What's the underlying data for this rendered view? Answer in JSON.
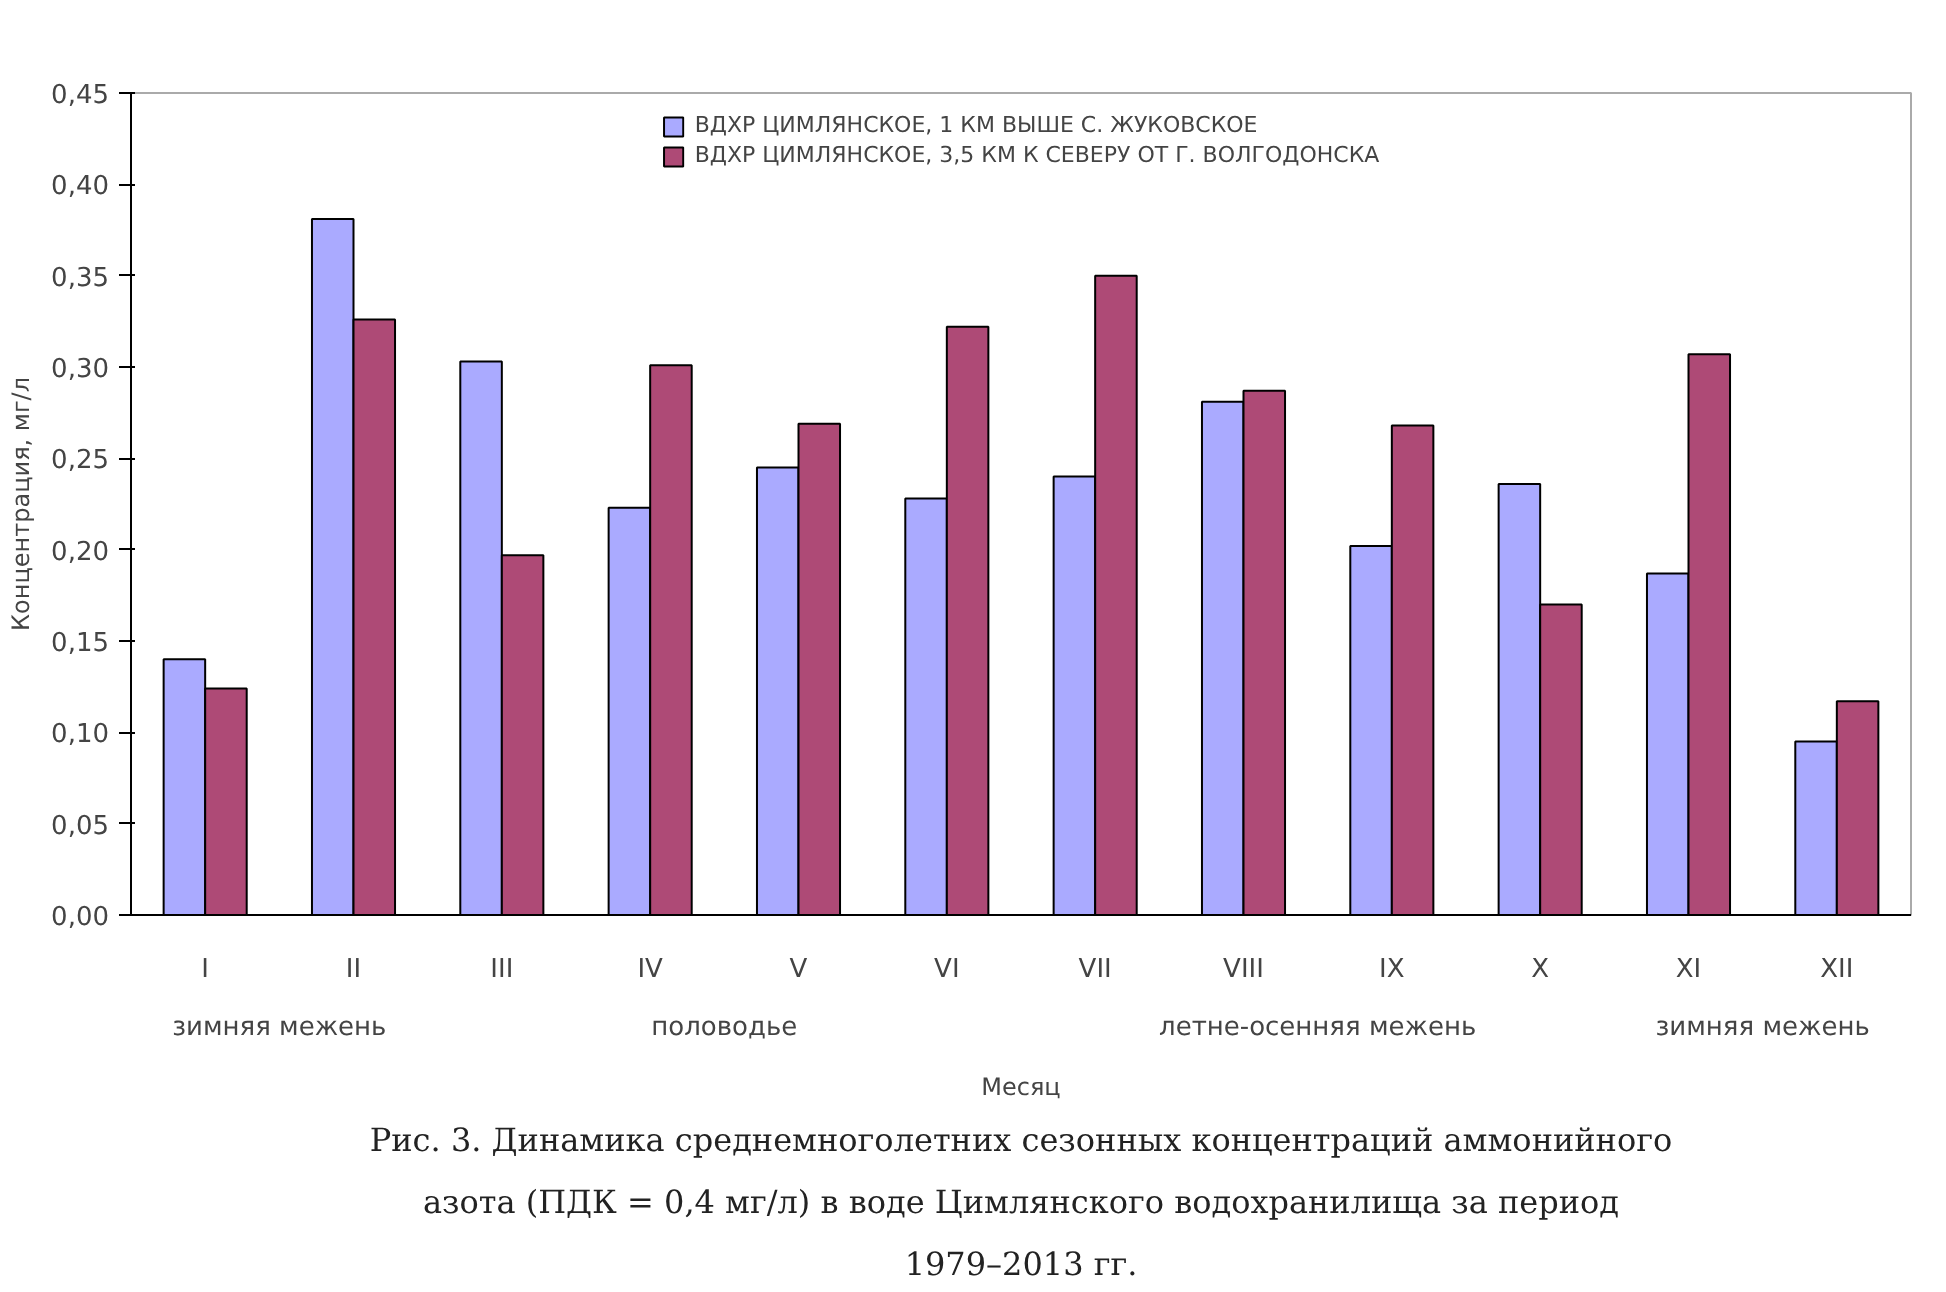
{
  "chart_data": {
    "type": "bar",
    "title": "Рис. 3. Динамика среднемноголетних сезонных концентраций аммонийного азота (ПДК = 0,4 мг/л) в воде Цимлянского водохранилища за период 1979–2013 гг.",
    "xlabel": "Месяц",
    "ylabel": "Концентрация, мг/л",
    "categories": [
      "I",
      "II",
      "III",
      "IV",
      "V",
      "VI",
      "VII",
      "VIII",
      "IX",
      "X",
      "XI",
      "XII"
    ],
    "series": [
      {
        "name": "ВДХР ЦИМЛЯНСКОЕ, 1 КМ ВЫШЕ С. ЖУКОВСКОЕ",
        "color": "#aaaaff",
        "values": [
          0.14,
          0.381,
          0.303,
          0.223,
          0.245,
          0.228,
          0.24,
          0.281,
          0.202,
          0.236,
          0.187,
          0.095
        ]
      },
      {
        "name": "ВДХР ЦИМЛЯНСКОЕ, 3,5 КМ К СЕВЕРУ ОТ Г. ВОЛГОДОНСКА",
        "color": "#ae4a76",
        "values": [
          0.124,
          0.326,
          0.197,
          0.301,
          0.269,
          0.322,
          0.35,
          0.287,
          0.268,
          0.17,
          0.307,
          0.117
        ]
      }
    ],
    "annotations": [
      "зимняя межень",
      "половодье",
      "летне-осенняя межень",
      "зимняя межень"
    ],
    "ylim": [
      0,
      0.45
    ],
    "yticks": [
      {
        "value": 0,
        "label": "0,00"
      },
      {
        "value": 0.05,
        "label": "0,05"
      },
      {
        "value": 0.1,
        "label": "0,10"
      },
      {
        "value": 0.15,
        "label": "0,15"
      },
      {
        "value": 0.2,
        "label": "0,20"
      },
      {
        "value": 0.25,
        "label": "0,25"
      },
      {
        "value": 0.3,
        "label": "0,30"
      },
      {
        "value": 0.35,
        "label": "0,35"
      },
      {
        "value": 0.4,
        "label": "0,40"
      },
      {
        "value": 0.45,
        "label": "0,45"
      }
    ],
    "grid": false,
    "legend": "top"
  }
}
